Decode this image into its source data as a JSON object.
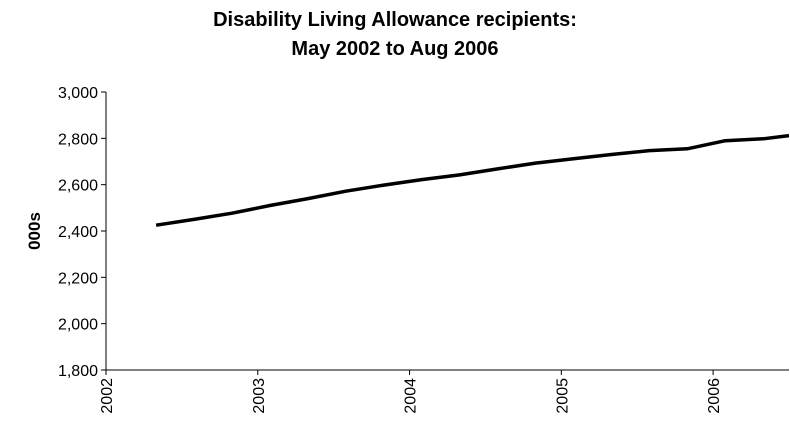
{
  "chart_data": {
    "type": "line",
    "title_line1": "Disability Living Allowance recipients:",
    "title_line2": "May 2002 to Aug 2006",
    "xlabel": "",
    "ylabel": "000s",
    "ylim": [
      1800,
      3000
    ],
    "yticks": [
      1800,
      2000,
      2200,
      2400,
      2600,
      2800,
      3000
    ],
    "ytick_labels": [
      "1,800",
      "2,000",
      "2,200",
      "2,400",
      "2,600",
      "2,800",
      "3,000"
    ],
    "xlim": [
      2002,
      2006.5
    ],
    "xticks": [
      2002,
      2003,
      2004,
      2005,
      2006
    ],
    "xtick_labels": [
      "2002",
      "2003",
      "2004",
      "2005",
      "2006"
    ],
    "grid": false,
    "legend": "none",
    "line_color": "#000000",
    "series": [
      {
        "x": [
          "May 2002",
          "Aug 2002",
          "Nov 2002",
          "Feb 2003",
          "May 2003",
          "Aug 2003",
          "Nov 2003",
          "Feb 2004",
          "May 2004",
          "Aug 2004",
          "Nov 2004",
          "Feb 2005",
          "May 2005",
          "Aug 2005",
          "Nov 2005",
          "Feb 2006",
          "May 2006",
          "Aug 2006"
        ],
        "x_decimal": [
          2002.33,
          2002.58,
          2002.83,
          2003.08,
          2003.33,
          2003.58,
          2003.83,
          2004.08,
          2004.33,
          2004.58,
          2004.83,
          2005.08,
          2005.33,
          2005.58,
          2005.83,
          2006.08,
          2006.33,
          2006.58
        ],
        "values": [
          2425,
          2450,
          2477,
          2510,
          2540,
          2572,
          2598,
          2622,
          2642,
          2668,
          2693,
          2712,
          2730,
          2747,
          2755,
          2790,
          2798,
          2812
        ]
      }
    ]
  }
}
